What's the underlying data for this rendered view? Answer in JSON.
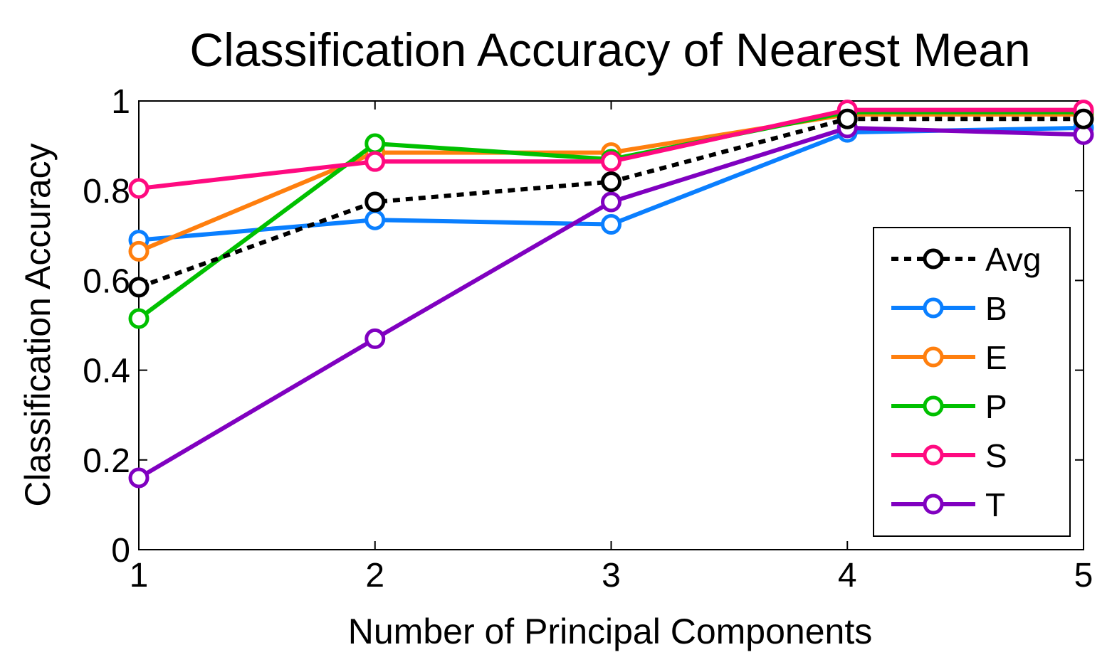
{
  "chart_data": {
    "type": "line",
    "title": "Classification Accuracy of Nearest Mean",
    "xlabel": "Number of Principal Components",
    "ylabel": "Classification Accuracy",
    "x": [
      1,
      2,
      3,
      4,
      5
    ],
    "xlim": [
      1,
      5
    ],
    "ylim": [
      0,
      1
    ],
    "xticks": [
      "1",
      "2",
      "3",
      "4",
      "5"
    ],
    "yticks": [
      {
        "value": 0,
        "label": "0"
      },
      {
        "value": 0.2,
        "label": "0.2"
      },
      {
        "value": 0.4,
        "label": "0.4"
      },
      {
        "value": 0.6,
        "label": "0.6"
      },
      {
        "value": 0.8,
        "label": "0.8"
      },
      {
        "value": 1,
        "label": "1"
      }
    ],
    "grid": false,
    "legend_position": "right",
    "series": [
      {
        "name": "Avg",
        "color": "#000000",
        "style": "dotted",
        "values": [
          0.585,
          0.775,
          0.82,
          0.96,
          0.96
        ]
      },
      {
        "name": "B",
        "color": "#0a7fff",
        "style": "solid",
        "values": [
          0.69,
          0.735,
          0.725,
          0.93,
          0.94
        ]
      },
      {
        "name": "E",
        "color": "#ff7f0e",
        "style": "solid",
        "values": [
          0.665,
          0.885,
          0.885,
          0.97,
          0.97
        ]
      },
      {
        "name": "P",
        "color": "#00c000",
        "style": "solid",
        "values": [
          0.515,
          0.905,
          0.87,
          0.975,
          0.975
        ]
      },
      {
        "name": "S",
        "color": "#ff0a80",
        "style": "solid",
        "values": [
          0.805,
          0.865,
          0.865,
          0.98,
          0.98
        ]
      },
      {
        "name": "T",
        "color": "#8000c0",
        "style": "solid",
        "values": [
          0.16,
          0.47,
          0.775,
          0.94,
          0.925
        ]
      }
    ]
  }
}
